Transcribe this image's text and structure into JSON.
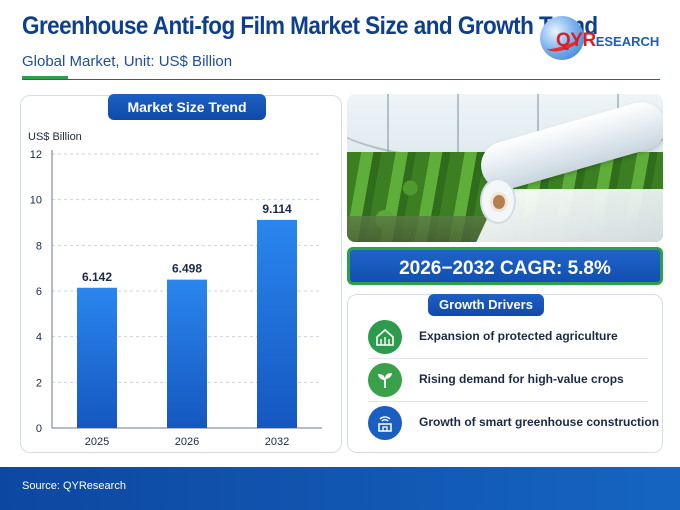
{
  "header": {
    "title": "Greenhouse Anti-fog Film Market Size and Growth Trend",
    "subtitle": "Global Market, Unit: US$ Billion"
  },
  "logo": {
    "brand_prefix": "QYR",
    "brand_suffix": "ESEARCH"
  },
  "chart_panel": {
    "title": "Market Size Trend"
  },
  "chart_data": {
    "type": "bar",
    "categories": [
      "2025",
      "2026",
      "2032"
    ],
    "values": [
      6.142,
      6.498,
      9.114
    ],
    "value_labels": [
      "6.142",
      "6.498",
      "9.114"
    ],
    "ylabel": "US$ Billion",
    "ylim": [
      0,
      12
    ],
    "yticks": [
      0,
      2,
      4,
      6,
      8,
      10,
      12
    ],
    "grid": true,
    "bar_color": "#1f6fd6"
  },
  "cagr": {
    "text": "2026−2032 CAGR: 5.8%"
  },
  "drivers": {
    "title": "Growth Drivers",
    "items": [
      {
        "label": "Expansion of protected agriculture",
        "icon": "greenhouse-icon",
        "color": "#2e9a4b"
      },
      {
        "label": "Rising demand for high-value crops",
        "icon": "seedling-icon",
        "color": "#3aa04a"
      },
      {
        "label": "Growth of smart greenhouse construction",
        "icon": "smart-building-icon",
        "color": "#1a5fbf"
      }
    ]
  },
  "footer": {
    "source": "Source: QYResearch"
  },
  "colors": {
    "primary": "#0d3f8f",
    "accent_green": "#2fa04a",
    "footer": "#0d47a1"
  }
}
